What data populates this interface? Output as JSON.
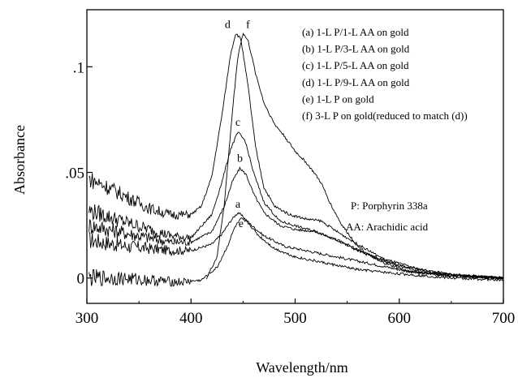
{
  "chart_data": {
    "type": "line",
    "xlabel": "Wavelength/nm",
    "ylabel": "Absorbance",
    "xlim": [
      300,
      700
    ],
    "ylim": [
      -0.012,
      0.127
    ],
    "x_ticks": [
      {
        "value": 300,
        "label": "300"
      },
      {
        "value": 400,
        "label": "400"
      },
      {
        "value": 500,
        "label": "500"
      },
      {
        "value": 600,
        "label": "600"
      },
      {
        "value": 700,
        "label": "700"
      }
    ],
    "y_ticks": [
      {
        "value": 0,
        "label": "0"
      },
      {
        "value": 0.05,
        "label": ".05"
      },
      {
        "value": 0.1,
        "label": ".1"
      }
    ],
    "grid": false,
    "legend_position": "top-right",
    "series": [
      {
        "name": "a",
        "legend": "(a) 1-L P/1-L AA on gold",
        "points": [
          [
            302,
            0.018
          ],
          [
            340,
            0.015
          ],
          [
            380,
            0.013
          ],
          [
            400,
            0.013
          ],
          [
            420,
            0.016
          ],
          [
            430,
            0.021
          ],
          [
            438,
            0.027
          ],
          [
            445,
            0.031
          ],
          [
            450,
            0.029
          ],
          [
            458,
            0.025
          ],
          [
            470,
            0.02
          ],
          [
            490,
            0.015
          ],
          [
            520,
            0.012
          ],
          [
            550,
            0.009
          ],
          [
            580,
            0.006
          ],
          [
            610,
            0.003
          ],
          [
            650,
            0.001
          ],
          [
            700,
            0.0
          ]
        ]
      },
      {
        "name": "b",
        "legend": "(b) 1-L P/3-L AA on gold",
        "points": [
          [
            302,
            0.025
          ],
          [
            340,
            0.021
          ],
          [
            380,
            0.017
          ],
          [
            400,
            0.017
          ],
          [
            420,
            0.022
          ],
          [
            432,
            0.034
          ],
          [
            440,
            0.046
          ],
          [
            447,
            0.052
          ],
          [
            453,
            0.049
          ],
          [
            460,
            0.04
          ],
          [
            470,
            0.031
          ],
          [
            485,
            0.025
          ],
          [
            500,
            0.023
          ],
          [
            520,
            0.022
          ],
          [
            540,
            0.018
          ],
          [
            560,
            0.013
          ],
          [
            590,
            0.007
          ],
          [
            620,
            0.003
          ],
          [
            660,
            0.001
          ],
          [
            700,
            0.0
          ]
        ]
      },
      {
        "name": "c",
        "legend": "(c) 1-L P/5-L AA on gold",
        "points": [
          [
            302,
            0.032
          ],
          [
            340,
            0.026
          ],
          [
            380,
            0.02
          ],
          [
            400,
            0.019
          ],
          [
            420,
            0.03
          ],
          [
            430,
            0.046
          ],
          [
            438,
            0.061
          ],
          [
            445,
            0.069
          ],
          [
            452,
            0.065
          ],
          [
            460,
            0.05
          ],
          [
            470,
            0.036
          ],
          [
            485,
            0.027
          ],
          [
            505,
            0.024
          ],
          [
            520,
            0.022
          ],
          [
            545,
            0.017
          ],
          [
            570,
            0.011
          ],
          [
            600,
            0.006
          ],
          [
            640,
            0.002
          ],
          [
            700,
            0.0
          ]
        ]
      },
      {
        "name": "d",
        "legend": "(d) 1-L P/9-L AA on gold",
        "points": [
          [
            302,
            0.047
          ],
          [
            320,
            0.043
          ],
          [
            340,
            0.038
          ],
          [
            360,
            0.033
          ],
          [
            380,
            0.03
          ],
          [
            400,
            0.03
          ],
          [
            410,
            0.034
          ],
          [
            420,
            0.048
          ],
          [
            430,
            0.078
          ],
          [
            438,
            0.106
          ],
          [
            443,
            0.116
          ],
          [
            448,
            0.113
          ],
          [
            455,
            0.09
          ],
          [
            462,
            0.062
          ],
          [
            470,
            0.043
          ],
          [
            480,
            0.034
          ],
          [
            495,
            0.03
          ],
          [
            510,
            0.028
          ],
          [
            525,
            0.027
          ],
          [
            540,
            0.022
          ],
          [
            560,
            0.016
          ],
          [
            585,
            0.009
          ],
          [
            620,
            0.004
          ],
          [
            660,
            0.001
          ],
          [
            700,
            0.0
          ]
        ]
      },
      {
        "name": "e",
        "legend": "(e) 1-L P on gold",
        "points": [
          [
            302,
            0.0
          ],
          [
            330,
            0.0
          ],
          [
            360,
            -0.001
          ],
          [
            390,
            -0.002
          ],
          [
            410,
            -0.001
          ],
          [
            425,
            0.005
          ],
          [
            435,
            0.015
          ],
          [
            442,
            0.024
          ],
          [
            448,
            0.028
          ],
          [
            455,
            0.026
          ],
          [
            465,
            0.02
          ],
          [
            480,
            0.014
          ],
          [
            500,
            0.01
          ],
          [
            530,
            0.007
          ],
          [
            560,
            0.004
          ],
          [
            600,
            0.002
          ],
          [
            650,
            0.0
          ],
          [
            700,
            -0.001
          ]
        ]
      },
      {
        "name": "f",
        "legend": "(f) 3-L P on gold(reduced to match (d))",
        "points": [
          [
            415,
            0.0
          ],
          [
            425,
            0.01
          ],
          [
            432,
            0.035
          ],
          [
            440,
            0.08
          ],
          [
            445,
            0.105
          ],
          [
            450,
            0.116
          ],
          [
            455,
            0.112
          ],
          [
            462,
            0.097
          ],
          [
            470,
            0.083
          ],
          [
            480,
            0.073
          ],
          [
            490,
            0.067
          ],
          [
            500,
            0.06
          ],
          [
            510,
            0.055
          ],
          [
            518,
            0.05
          ],
          [
            525,
            0.045
          ],
          [
            535,
            0.034
          ],
          [
            545,
            0.025
          ],
          [
            560,
            0.015
          ],
          [
            580,
            0.008
          ],
          [
            610,
            0.003
          ],
          [
            650,
            0.001
          ],
          [
            700,
            0.0
          ]
        ]
      }
    ],
    "annotations": {
      "porphyrin": "P: Porphyrin 338a",
      "arachidic": "AA: Arachidic acid"
    }
  }
}
